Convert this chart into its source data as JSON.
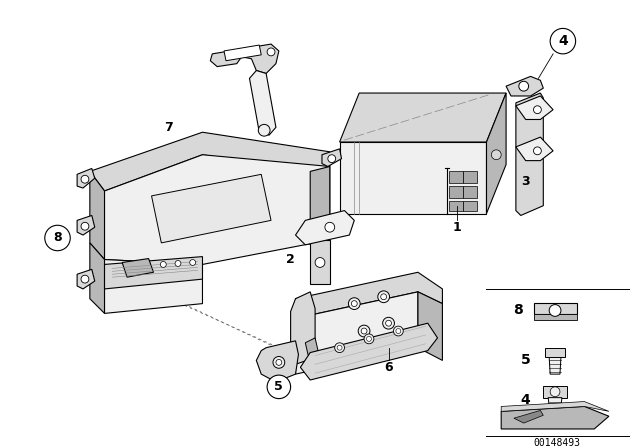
{
  "bg_color": "#ffffff",
  "line_color": "#000000",
  "fig_width": 6.4,
  "fig_height": 4.48,
  "dpi": 100,
  "part_number": "00148493",
  "lw": 0.8,
  "face_light": "#f0f0f0",
  "face_mid": "#d8d8d8",
  "face_dark": "#b8b8b8",
  "face_white": "#ffffff"
}
